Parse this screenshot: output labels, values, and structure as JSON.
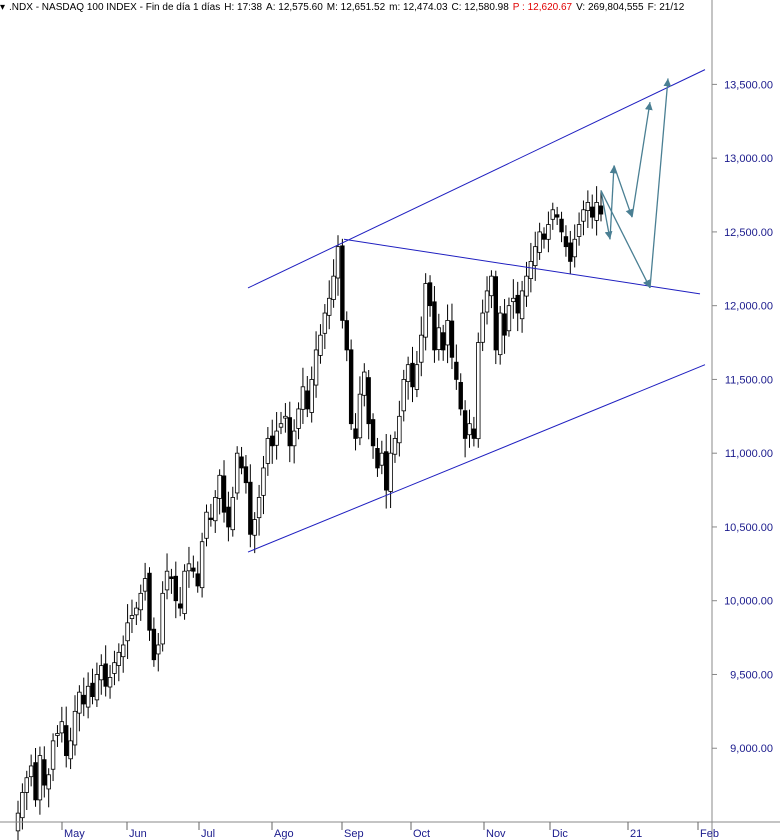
{
  "header": {
    "icon": "dropdown-arrow-icon",
    "symbol": ".NDX - NASDAQ 100 INDEX - Fin de día 1 días",
    "high": "H: 17:38",
    "open": "A: 12,575.60",
    "max": "M: 12,651.52",
    "min": "m: 12,474.03",
    "close": "C: 12,580.98",
    "price": "P : 12,620.67",
    "volume": "V: 269,804,555",
    "date": "F: 21/12"
  },
  "colors": {
    "axis_text": "#1a1a8c",
    "trendline": "#1f1fc0",
    "projection": "#4a7f93",
    "candle_up": "#ffffff",
    "candle_down": "#000000",
    "price_highlight": "#e00000"
  },
  "chart_data": {
    "type": "candlestick",
    "title": ".NDX - NASDAQ 100 INDEX",
    "ylim": [
      8500,
      13950
    ],
    "y_ticks": [
      9000,
      9500,
      10000,
      10500,
      11000,
      11500,
      12000,
      12500,
      13000,
      13500
    ],
    "y_tick_labels": [
      "9,000.00",
      "9,500.00",
      "10,000.00",
      "10,500.00",
      "11,000.00",
      "11,500.00",
      "12,000.00",
      "12,500.00",
      "13,000.00",
      "13,500.00"
    ],
    "x_labels": [
      "May",
      "Jun",
      "Jul",
      "Ago",
      "Sep",
      "Oct",
      "Nov",
      "Dic",
      "21",
      "Feb"
    ],
    "grid": false,
    "series_close": [
      8560,
      8700,
      8800,
      8880,
      8650,
      8950,
      8750,
      8820,
      9050,
      9100,
      9180,
      8950,
      9050,
      9250,
      9380,
      9300,
      9420,
      9350,
      9500,
      9560,
      9420,
      9480,
      9580,
      9650,
      9700,
      9850,
      9900,
      9950,
      10050,
      10150,
      9800,
      9600,
      9700,
      10050,
      10200,
      10150,
      10000,
      9950,
      10200,
      10250,
      10200,
      10100,
      10400,
      10600,
      10550,
      10700,
      10850,
      10600,
      10500,
      10700,
      11000,
      10900,
      10800,
      10450,
      10550,
      10700,
      10900,
      11100,
      11050,
      11150,
      11200,
      11250,
      11050,
      11150,
      11300,
      11450,
      11300,
      11500,
      11700,
      11800,
      11950,
      12050,
      12200,
      12400,
      11900,
      11700,
      11200,
      11100,
      11400,
      11550,
      11200,
      11050,
      10900,
      11000,
      10750,
      11000,
      11100,
      11250,
      11500,
      11600,
      11450,
      11600,
      11800,
      12150,
      12000,
      11700,
      11850,
      11700,
      11900,
      11650,
      11500,
      11300,
      11100,
      11200,
      11100,
      11750,
      11950,
      12100,
      12200,
      11700,
      11950,
      11800,
      12000,
      12050,
      11950,
      12100,
      12200,
      12300,
      12400,
      12500,
      12450,
      12550,
      12650,
      12600,
      12500,
      12400,
      12300,
      12450,
      12550,
      12650,
      12700,
      12600,
      12700,
      12621
    ],
    "channel_lines": [
      {
        "from": [
          "Ago 1",
          12120
        ],
        "to": [
          "Feb 3",
          13600
        ]
      },
      {
        "from": [
          "Ago 1",
          10330
        ],
        "to": [
          "Feb 3",
          11600
        ]
      },
      {
        "from": [
          "Sep 2",
          12450
        ],
        "to": [
          "Feb 3",
          12080
        ]
      }
    ],
    "projection_path": [
      12780,
      12450,
      12950,
      12600,
      13380,
      12120,
      13540
    ]
  }
}
